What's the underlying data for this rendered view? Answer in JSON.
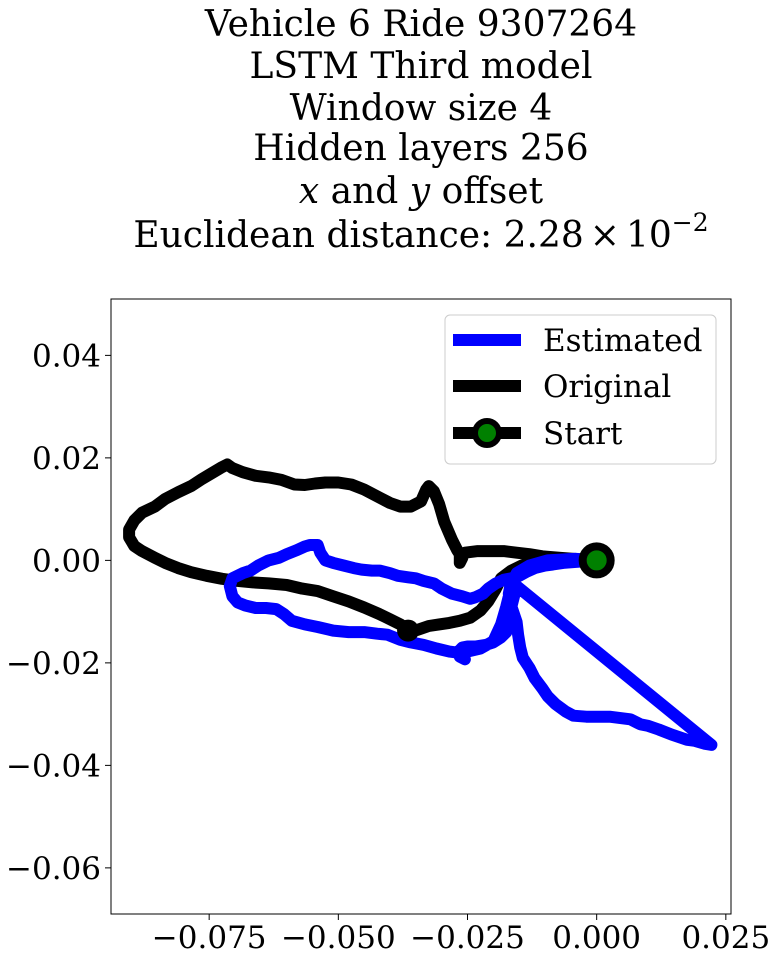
{
  "chart_data": {
    "type": "line",
    "title_lines": [
      "Vehicle 6 Ride 9307264",
      "LSTM Third model",
      "Window size 4",
      "Hidden layers 256"
    ],
    "offset_title": {
      "x_var": "x",
      "and": " and ",
      "y_var": "y",
      "rest": " offset"
    },
    "distance_title": {
      "prefix": "Euclidean distance: ",
      "mantissa": "2.28",
      "times": "×",
      "base": "10",
      "exponent": "−2"
    },
    "xlabel": "",
    "ylabel": "",
    "xlim": [
      -0.094,
      0.026
    ],
    "ylim": [
      -0.069,
      0.051
    ],
    "xticks": [
      -0.075,
      -0.05,
      -0.025,
      0.0,
      0.025
    ],
    "xtick_labels": [
      "−0.075",
      "−0.050",
      "−0.025",
      "0.000",
      "0.025"
    ],
    "yticks": [
      0.04,
      0.02,
      0.0,
      -0.02,
      -0.04,
      -0.06
    ],
    "ytick_labels": [
      "0.04",
      "0.02",
      "0.00",
      "−0.02",
      "−0.04",
      "−0.06"
    ],
    "grid": false,
    "legend_position": "top-right",
    "series": [
      {
        "name": "Estimated",
        "color": "#0000ff",
        "points": [
          [
            0.0,
            0.0
          ],
          [
            -0.004,
            -0.0003
          ],
          [
            -0.008,
            -0.0005
          ],
          [
            -0.012,
            -0.0012
          ],
          [
            -0.015,
            -0.0025
          ],
          [
            -0.0165,
            -0.004
          ],
          [
            -0.017,
            -0.0065
          ],
          [
            -0.0165,
            -0.009
          ],
          [
            -0.0155,
            -0.012
          ],
          [
            -0.0152,
            -0.0145
          ],
          [
            -0.0148,
            -0.017
          ],
          [
            -0.0143,
            -0.019
          ],
          [
            -0.013,
            -0.021
          ],
          [
            -0.012,
            -0.023
          ],
          [
            -0.0105,
            -0.025
          ],
          [
            -0.0095,
            -0.0265
          ],
          [
            -0.008,
            -0.028
          ],
          [
            -0.006,
            -0.0295
          ],
          [
            -0.0045,
            -0.0303
          ],
          [
            -0.002,
            -0.0305
          ],
          [
            0.0025,
            -0.0305
          ],
          [
            0.0065,
            -0.031
          ],
          [
            0.0085,
            -0.032
          ],
          [
            0.01,
            -0.0323
          ],
          [
            0.012,
            -0.033
          ],
          [
            0.0145,
            -0.034
          ],
          [
            0.0175,
            -0.035
          ],
          [
            0.019,
            -0.0352
          ],
          [
            0.021,
            -0.0358
          ],
          [
            0.0222,
            -0.036
          ],
          [
            -0.0155,
            -0.005
          ],
          [
            -0.0165,
            -0.009
          ],
          [
            -0.017,
            -0.0125
          ],
          [
            -0.0175,
            -0.014
          ],
          [
            -0.0185,
            -0.015
          ],
          [
            -0.02,
            -0.016
          ],
          [
            -0.0215,
            -0.0165
          ],
          [
            -0.0235,
            -0.0168
          ],
          [
            -0.025,
            -0.0168
          ],
          [
            -0.026,
            -0.017
          ],
          [
            -0.0265,
            -0.0175
          ],
          [
            -0.027,
            -0.018
          ],
          [
            -0.0285,
            -0.0178
          ],
          [
            -0.031,
            -0.0172
          ],
          [
            -0.0335,
            -0.0165
          ],
          [
            -0.036,
            -0.016
          ],
          [
            -0.038,
            -0.0155
          ],
          [
            -0.0405,
            -0.0145
          ],
          [
            -0.0425,
            -0.0143
          ],
          [
            -0.045,
            -0.014
          ],
          [
            -0.048,
            -0.014
          ],
          [
            -0.051,
            -0.0137
          ],
          [
            -0.054,
            -0.013
          ],
          [
            -0.0565,
            -0.0125
          ],
          [
            -0.059,
            -0.0118
          ],
          [
            -0.0605,
            -0.0105
          ],
          [
            -0.062,
            -0.0095
          ],
          [
            -0.064,
            -0.0093
          ],
          [
            -0.066,
            -0.0093
          ],
          [
            -0.068,
            -0.0088
          ],
          [
            -0.0695,
            -0.0082
          ],
          [
            -0.0705,
            -0.007
          ],
          [
            -0.071,
            -0.005
          ],
          [
            -0.0705,
            -0.0035
          ],
          [
            -0.0685,
            -0.0025
          ],
          [
            -0.067,
            -0.002
          ],
          [
            -0.0655,
            -0.001
          ],
          [
            -0.0635,
            0.0
          ],
          [
            -0.0615,
            0.0005
          ],
          [
            -0.06,
            0.0012
          ],
          [
            -0.058,
            0.002
          ],
          [
            -0.0565,
            0.0027
          ],
          [
            -0.0555,
            0.003
          ],
          [
            -0.054,
            0.003
          ],
          [
            -0.0535,
            0.0015
          ],
          [
            -0.0525,
            0.0
          ],
          [
            -0.051,
            -0.0005
          ],
          [
            -0.049,
            -0.001
          ],
          [
            -0.047,
            -0.0015
          ],
          [
            -0.0455,
            -0.0018
          ],
          [
            -0.0435,
            -0.002
          ],
          [
            -0.042,
            -0.002
          ],
          [
            -0.04,
            -0.0025
          ],
          [
            -0.0385,
            -0.003
          ],
          [
            -0.0365,
            -0.0033
          ],
          [
            -0.035,
            -0.0035
          ],
          [
            -0.0335,
            -0.004
          ],
          [
            -0.0315,
            -0.0045
          ],
          [
            -0.03,
            -0.0055
          ],
          [
            -0.028,
            -0.0065
          ],
          [
            -0.026,
            -0.007
          ],
          [
            -0.0245,
            -0.0075
          ],
          [
            -0.0235,
            -0.0072
          ],
          [
            -0.022,
            -0.0065
          ],
          [
            -0.021,
            -0.0055
          ],
          [
            -0.0195,
            -0.0045
          ],
          [
            -0.018,
            -0.0038
          ],
          [
            -0.0165,
            -0.0035
          ],
          [
            -0.015,
            -0.003
          ],
          [
            -0.0135,
            -0.0022
          ],
          [
            -0.012,
            -0.0015
          ],
          [
            -0.01,
            -0.001
          ],
          [
            -0.0085,
            -0.0008
          ],
          [
            -0.0065,
            -0.0005
          ],
          [
            -0.004,
            -0.0003
          ],
          [
            0.0,
            0.0
          ],
          [
            -0.004,
            0.0003
          ],
          [
            -0.0095,
            0.0
          ],
          [
            -0.013,
            -0.001
          ],
          [
            -0.0155,
            -0.0025
          ],
          [
            -0.0165,
            -0.005
          ],
          [
            -0.0175,
            -0.009
          ],
          [
            -0.0185,
            -0.0125
          ],
          [
            -0.02,
            -0.0158
          ],
          [
            -0.0225,
            -0.0172
          ],
          [
            -0.025,
            -0.0178
          ],
          [
            -0.0265,
            -0.0188
          ],
          [
            -0.0255,
            -0.0193
          ]
        ]
      },
      {
        "name": "Original",
        "color": "#000000",
        "points": [
          [
            0.0,
            0.0
          ],
          [
            -0.0035,
            0.0002
          ],
          [
            -0.007,
            0.0005
          ],
          [
            -0.0105,
            0.0008
          ],
          [
            -0.013,
            0.0012
          ],
          [
            -0.0155,
            0.0015
          ],
          [
            -0.018,
            0.0018
          ],
          [
            -0.0205,
            0.0018
          ],
          [
            -0.023,
            0.0018
          ],
          [
            -0.0255,
            0.0015
          ],
          [
            -0.0265,
            0.001
          ],
          [
            -0.0265,
            -0.0005
          ],
          [
            -0.026,
            0.0005
          ],
          [
            -0.0265,
            0.0012
          ],
          [
            -0.027,
            0.002
          ],
          [
            -0.028,
            0.004
          ],
          [
            -0.0295,
            0.0075
          ],
          [
            -0.0305,
            0.011
          ],
          [
            -0.0315,
            0.0135
          ],
          [
            -0.0325,
            0.0145
          ],
          [
            -0.033,
            0.0138
          ],
          [
            -0.034,
            0.0115
          ],
          [
            -0.036,
            0.0105
          ],
          [
            -0.038,
            0.0105
          ],
          [
            -0.04,
            0.0112
          ],
          [
            -0.0425,
            0.0125
          ],
          [
            -0.045,
            0.0138
          ],
          [
            -0.0475,
            0.0148
          ],
          [
            -0.05,
            0.0152
          ],
          [
            -0.0525,
            0.0152
          ],
          [
            -0.0545,
            0.015
          ],
          [
            -0.0565,
            0.0147
          ],
          [
            -0.0585,
            0.0148
          ],
          [
            -0.061,
            0.0157
          ],
          [
            -0.0635,
            0.0162
          ],
          [
            -0.066,
            0.0165
          ],
          [
            -0.0685,
            0.0172
          ],
          [
            -0.0705,
            0.018
          ],
          [
            -0.0715,
            0.0187
          ],
          [
            -0.0725,
            0.0182
          ],
          [
            -0.0745,
            0.017
          ],
          [
            -0.0765,
            0.0158
          ],
          [
            -0.0785,
            0.0145
          ],
          [
            -0.081,
            0.0133
          ],
          [
            -0.0835,
            0.012
          ],
          [
            -0.0855,
            0.0105
          ],
          [
            -0.088,
            0.0093
          ],
          [
            -0.0895,
            0.0078
          ],
          [
            -0.0905,
            0.006
          ],
          [
            -0.0905,
            0.0045
          ],
          [
            -0.0895,
            0.0028
          ],
          [
            -0.088,
            0.0018
          ],
          [
            -0.0855,
            0.0005
          ],
          [
            -0.0835,
            -0.0005
          ],
          [
            -0.081,
            -0.0015
          ],
          [
            -0.0785,
            -0.0023
          ],
          [
            -0.0755,
            -0.003
          ],
          [
            -0.0725,
            -0.0036
          ],
          [
            -0.0695,
            -0.004
          ],
          [
            -0.0665,
            -0.0043
          ],
          [
            -0.0635,
            -0.0045
          ],
          [
            -0.06,
            -0.0048
          ],
          [
            -0.057,
            -0.0055
          ],
          [
            -0.054,
            -0.006
          ],
          [
            -0.051,
            -0.007
          ],
          [
            -0.048,
            -0.008
          ],
          [
            -0.045,
            -0.0092
          ],
          [
            -0.042,
            -0.0105
          ],
          [
            -0.04,
            -0.0115
          ],
          [
            -0.038,
            -0.0125
          ],
          [
            -0.0365,
            -0.0135
          ],
          [
            -0.036,
            -0.014
          ],
          [
            -0.0345,
            -0.0135
          ],
          [
            -0.0325,
            -0.0128
          ],
          [
            -0.0305,
            -0.0125
          ],
          [
            -0.0285,
            -0.0122
          ],
          [
            -0.0265,
            -0.0118
          ],
          [
            -0.0245,
            -0.0112
          ],
          [
            -0.0225,
            -0.0098
          ],
          [
            -0.021,
            -0.008
          ],
          [
            -0.0195,
            -0.0055
          ],
          [
            -0.0185,
            -0.0035
          ],
          [
            -0.0165,
            -0.002
          ],
          [
            -0.0145,
            -0.001
          ],
          [
            -0.012,
            -0.0005
          ],
          [
            -0.009,
            -0.0002
          ],
          [
            -0.005,
            -0.0001
          ],
          [
            0.0,
            0.0
          ]
        ]
      },
      {
        "name": "Start",
        "color": "#000000",
        "marker_face": "#008000",
        "marker_edge": "#000000",
        "points": [
          [
            0.0,
            0.0
          ]
        ]
      }
    ],
    "extra_marks": [
      {
        "name": "original-end-marker",
        "x": -0.0365,
        "y": -0.0137,
        "color": "#000000"
      }
    ]
  }
}
